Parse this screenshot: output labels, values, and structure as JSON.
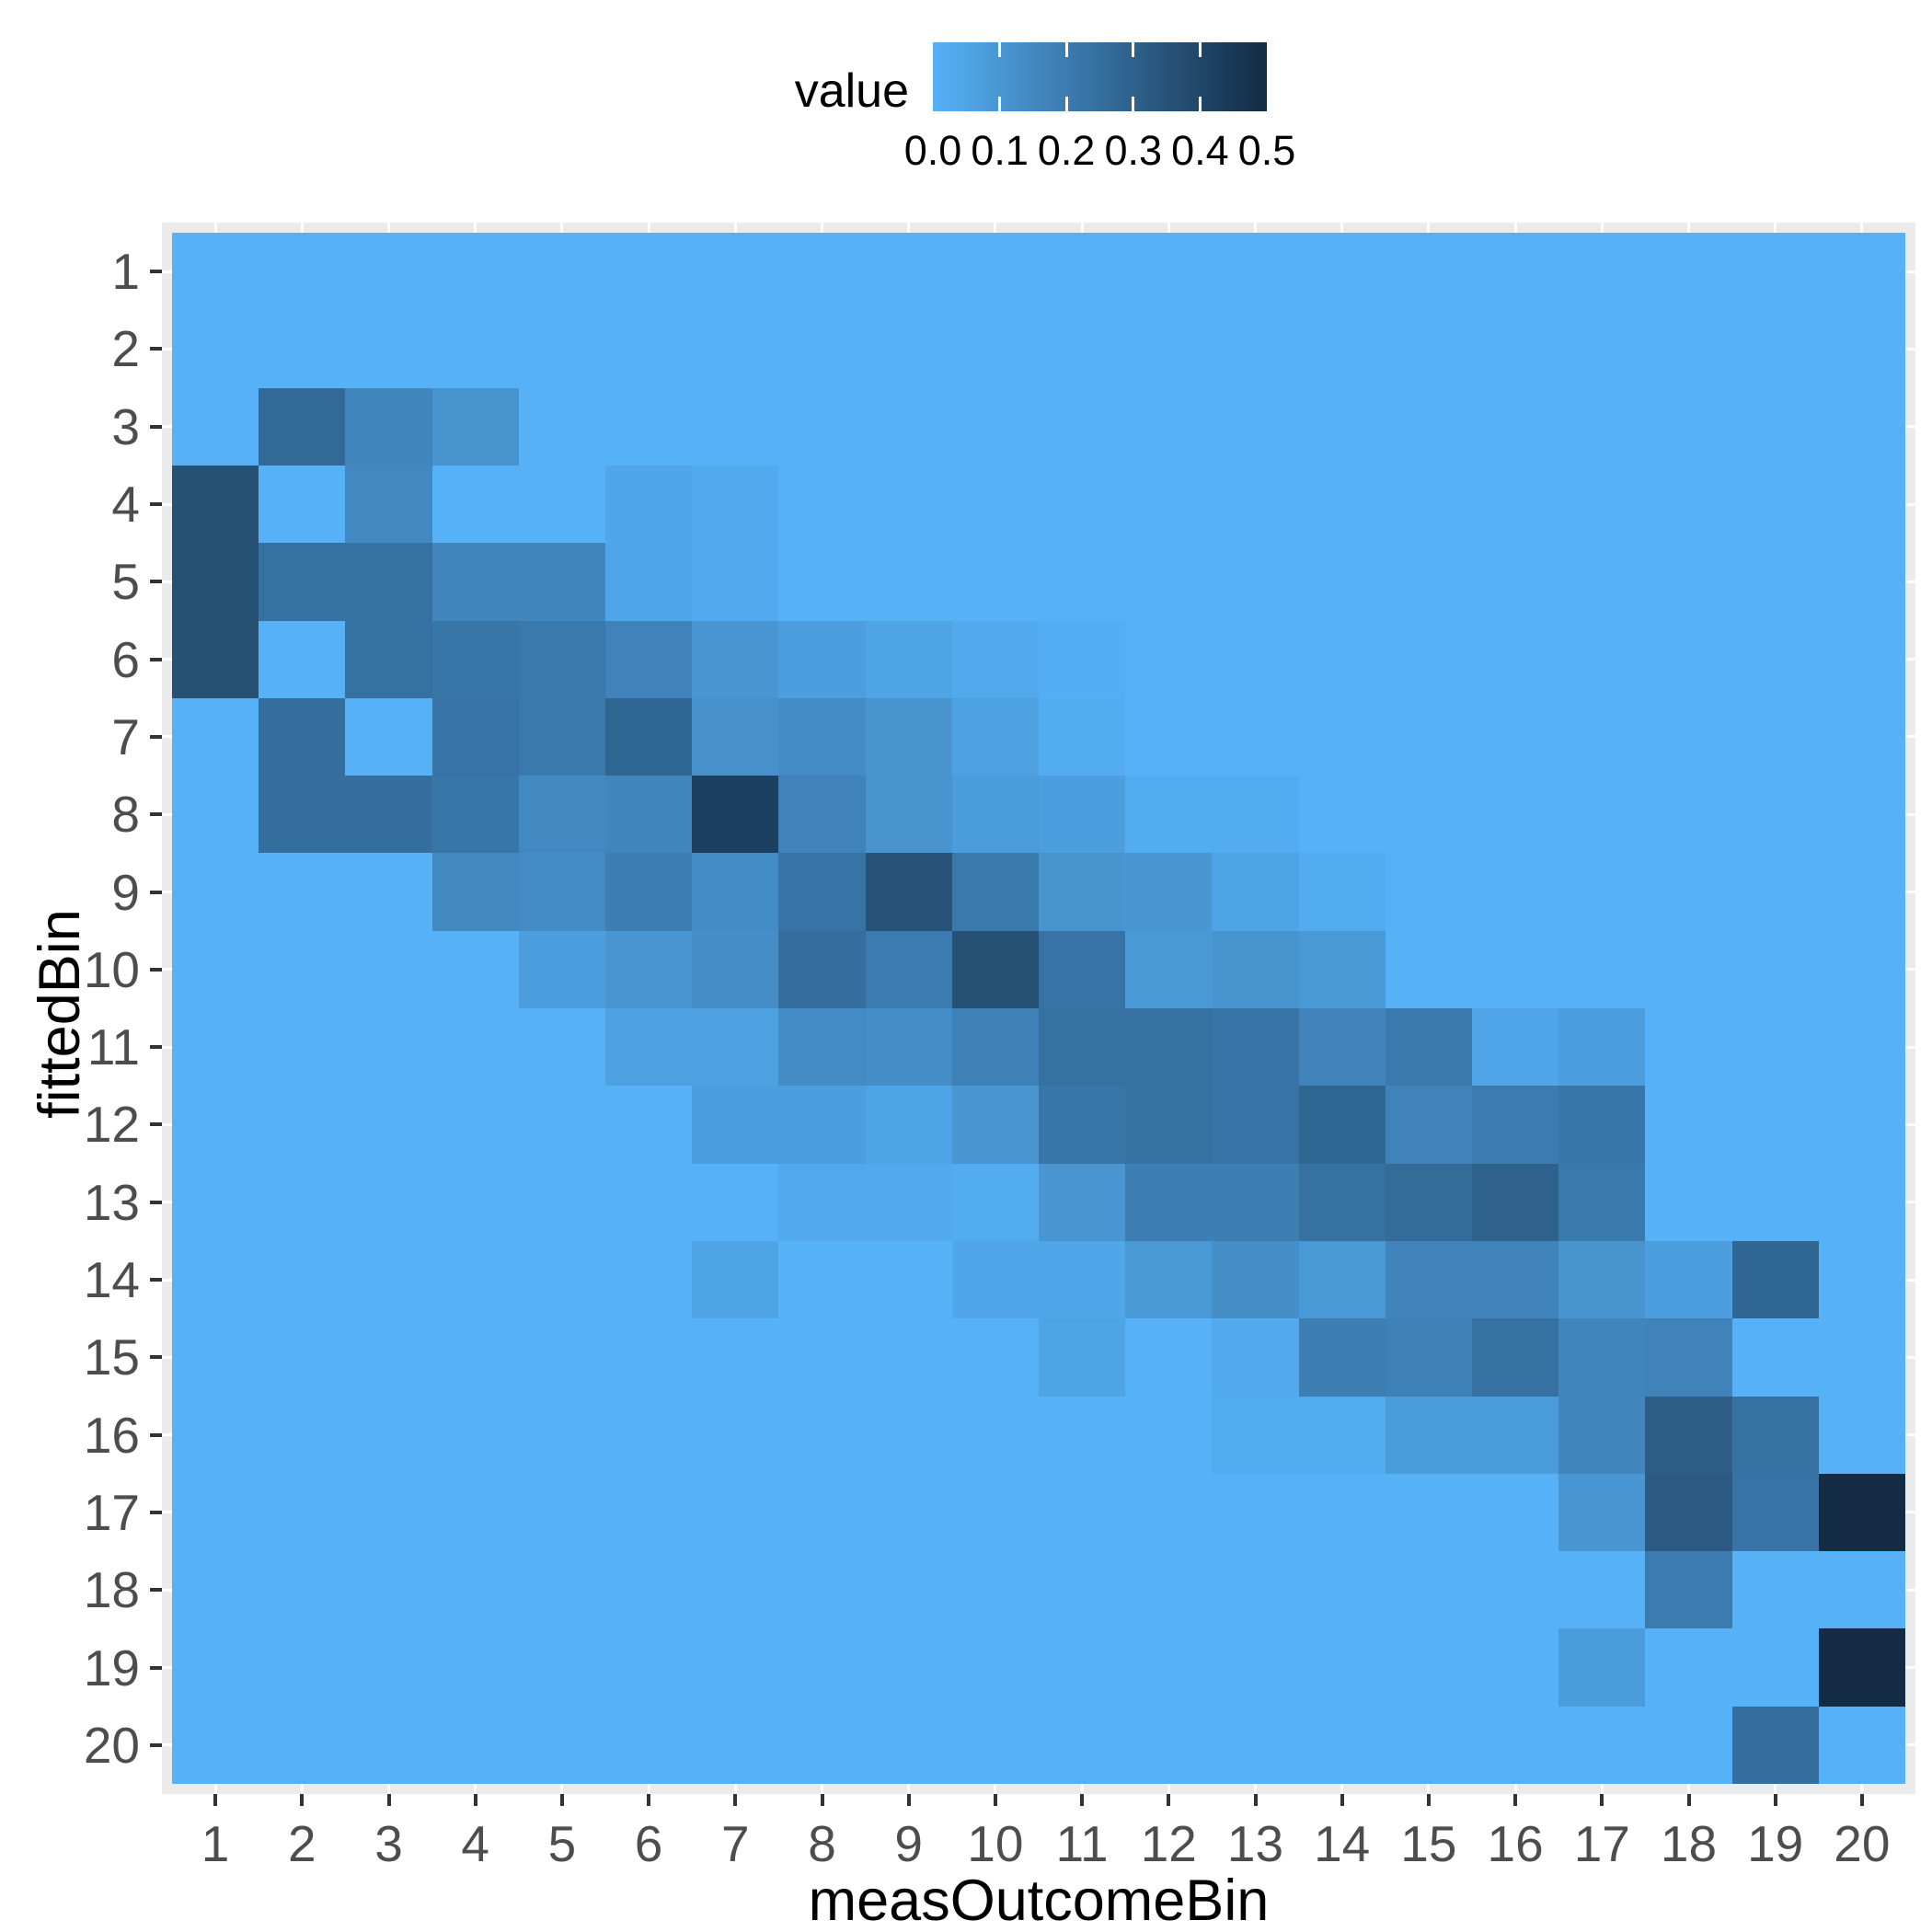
{
  "chart_data": {
    "type": "heatmap",
    "title": "",
    "xlabel": "measOutcomeBin",
    "ylabel": "fittedBin",
    "x_categories": [
      "1",
      "2",
      "3",
      "4",
      "5",
      "6",
      "7",
      "8",
      "9",
      "10",
      "11",
      "12",
      "13",
      "14",
      "15",
      "16",
      "17",
      "18",
      "19",
      "20"
    ],
    "y_categories": [
      "1",
      "2",
      "3",
      "4",
      "5",
      "6",
      "7",
      "8",
      "9",
      "10",
      "11",
      "12",
      "13",
      "14",
      "15",
      "16",
      "17",
      "18",
      "19",
      "20"
    ],
    "legend": {
      "title": "value",
      "tick_labels": [
        "0.0",
        "0.1",
        "0.2",
        "0.3",
        "0.4",
        "0.5"
      ],
      "domain": [
        0.0,
        0.5
      ],
      "low_color": "#56B1F7",
      "high_color": "#132B43",
      "position": "top"
    },
    "grid": "white-dashes-in-margins",
    "values": [
      [
        0,
        0,
        0,
        0,
        0,
        0,
        0,
        0,
        0,
        0,
        0,
        0,
        0,
        0,
        0,
        0,
        0,
        0,
        0,
        0
      ],
      [
        0,
        0,
        0,
        0,
        0,
        0,
        0,
        0,
        0,
        0,
        0,
        0,
        0,
        0,
        0,
        0,
        0,
        0,
        0,
        0
      ],
      [
        0,
        0.27,
        0.16,
        0.11,
        0,
        0,
        0,
        0,
        0,
        0,
        0,
        0,
        0,
        0,
        0,
        0,
        0,
        0,
        0,
        0
      ],
      [
        0.36,
        0,
        0.15,
        0,
        0,
        0.04,
        0.03,
        0,
        0,
        0,
        0,
        0,
        0,
        0,
        0,
        0,
        0,
        0,
        0,
        0
      ],
      [
        0.36,
        0.24,
        0.24,
        0.16,
        0.16,
        0.04,
        0.03,
        0,
        0,
        0,
        0,
        0,
        0,
        0,
        0,
        0,
        0,
        0,
        0,
        0
      ],
      [
        0.36,
        0,
        0.24,
        0.22,
        0.21,
        0.17,
        0.1,
        0.07,
        0.05,
        0.03,
        0.01,
        0,
        0,
        0,
        0,
        0,
        0,
        0,
        0,
        0
      ],
      [
        0,
        0.25,
        0,
        0.23,
        0.21,
        0.28,
        0.12,
        0.14,
        0.11,
        0.06,
        0.02,
        0,
        0,
        0,
        0,
        0,
        0,
        0,
        0,
        0
      ],
      [
        0,
        0.25,
        0.25,
        0.22,
        0.15,
        0.16,
        0.42,
        0.17,
        0.11,
        0.08,
        0.07,
        0.02,
        0.02,
        0,
        0,
        0,
        0,
        0,
        0,
        0
      ],
      [
        0,
        0,
        0,
        0.15,
        0.14,
        0.19,
        0.14,
        0.23,
        0.35,
        0.21,
        0.11,
        0.1,
        0.05,
        0.02,
        0,
        0,
        0,
        0,
        0,
        0
      ],
      [
        0,
        0,
        0,
        0,
        0.07,
        0.1,
        0.13,
        0.25,
        0.2,
        0.36,
        0.23,
        0.09,
        0.11,
        0.09,
        0,
        0,
        0,
        0,
        0,
        0
      ],
      [
        0,
        0,
        0,
        0,
        0,
        0.06,
        0.06,
        0.14,
        0.13,
        0.18,
        0.24,
        0.24,
        0.23,
        0.17,
        0.21,
        0.04,
        0.07,
        0,
        0,
        0
      ],
      [
        0,
        0,
        0,
        0,
        0,
        0,
        0.07,
        0.07,
        0.05,
        0.1,
        0.22,
        0.24,
        0.23,
        0.28,
        0.17,
        0.2,
        0.22,
        0,
        0,
        0
      ],
      [
        0,
        0,
        0,
        0,
        0,
        0,
        0,
        0.03,
        0.03,
        0.02,
        0.1,
        0.19,
        0.19,
        0.24,
        0.26,
        0.3,
        0.21,
        0,
        0,
        0
      ],
      [
        0,
        0,
        0,
        0,
        0,
        0,
        0.05,
        0,
        0,
        0.04,
        0.04,
        0.09,
        0.13,
        0.09,
        0.17,
        0.17,
        0.11,
        0.07,
        0.28,
        0
      ],
      [
        0,
        0,
        0,
        0,
        0,
        0,
        0,
        0,
        0,
        0,
        0.05,
        0,
        0.03,
        0.19,
        0.18,
        0.24,
        0.16,
        0.17,
        0,
        0
      ],
      [
        0,
        0,
        0,
        0,
        0,
        0,
        0,
        0,
        0,
        0,
        0,
        0,
        0.02,
        0.02,
        0.08,
        0.08,
        0.16,
        0.31,
        0.24,
        0
      ],
      [
        0,
        0,
        0,
        0,
        0,
        0,
        0,
        0,
        0,
        0,
        0,
        0,
        0,
        0,
        0,
        0,
        0.1,
        0.32,
        0.23,
        0.5
      ],
      [
        0,
        0,
        0,
        0,
        0,
        0,
        0,
        0,
        0,
        0,
        0,
        0,
        0,
        0,
        0,
        0,
        0,
        0.2,
        0,
        0
      ],
      [
        0,
        0,
        0,
        0,
        0,
        0,
        0,
        0,
        0,
        0,
        0,
        0,
        0,
        0,
        0,
        0,
        0.08,
        0,
        0,
        0.5
      ],
      [
        0,
        0,
        0,
        0,
        0,
        0,
        0,
        0,
        0,
        0,
        0,
        0,
        0,
        0,
        0,
        0,
        0,
        0,
        0.25,
        0
      ]
    ]
  },
  "style": {
    "panel_bg": "#EBEBEB",
    "grid_color": "#FFFFFF",
    "axis_tick_color": "#333333",
    "tick_label_color": "#4D4D4D",
    "title_color": "#000000",
    "background": "#FFFFFF"
  }
}
